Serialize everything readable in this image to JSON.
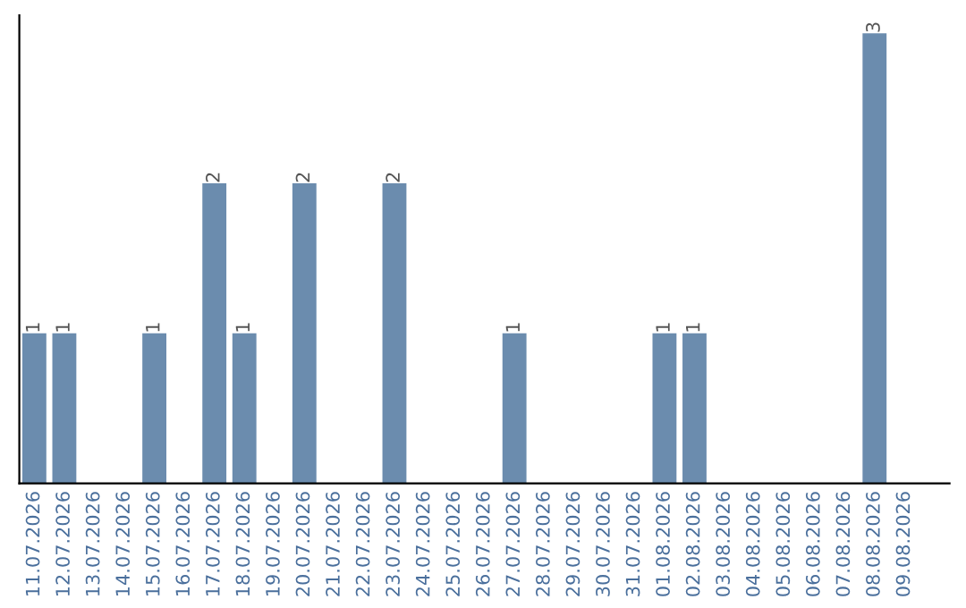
{
  "chart_data": {
    "type": "bar",
    "categories": [
      "11.07.2026",
      "12.07.2026",
      "13.07.2026",
      "14.07.2026",
      "15.07.2026",
      "16.07.2026",
      "17.07.2026",
      "18.07.2026",
      "19.07.2026",
      "20.07.2026",
      "21.07.2026",
      "22.07.2026",
      "23.07.2026",
      "24.07.2026",
      "25.07.2026",
      "26.07.2026",
      "27.07.2026",
      "28.07.2026",
      "29.07.2026",
      "30.07.2026",
      "31.07.2026",
      "01.08.2026",
      "02.08.2026",
      "03.08.2026",
      "04.08.2026",
      "05.08.2026",
      "06.08.2026",
      "07.08.2026",
      "08.08.2026",
      "09.08.2026"
    ],
    "values": [
      1,
      1,
      0,
      0,
      1,
      0,
      2,
      1,
      0,
      2,
      0,
      0,
      2,
      0,
      0,
      0,
      1,
      0,
      0,
      0,
      0,
      1,
      1,
      0,
      0,
      0,
      0,
      0,
      3,
      0
    ],
    "value_labels": [
      "1",
      "1",
      null,
      null,
      "1",
      null,
      "2",
      "1",
      null,
      "2",
      null,
      null,
      "2",
      null,
      null,
      null,
      "1",
      null,
      null,
      null,
      null,
      "1",
      "1",
      null,
      null,
      null,
      null,
      null,
      "3",
      null
    ],
    "color": "#6b8cae",
    "grid": false,
    "legend": false,
    "tick_labels": "x"
  }
}
